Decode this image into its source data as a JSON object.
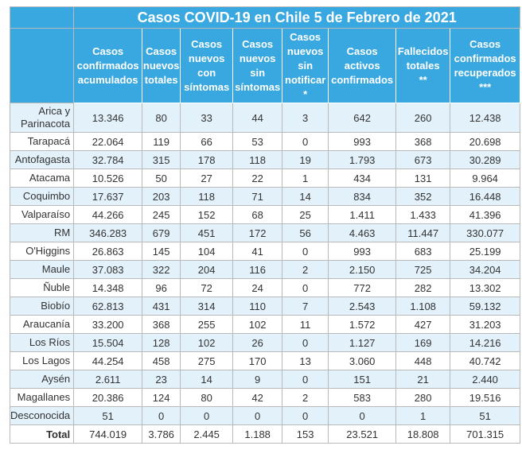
{
  "title": "Casos COVID-19 en Chile 5 de Febrero de 2021",
  "columns": [
    "Casos\nconfirmados\nacumulados",
    "Casos\nnuevos\ntotales",
    "Casos\nnuevos\ncon\nsíntomas",
    "Casos\nnuevos\nsin\nsíntomas",
    "Casos\nnuevos\nsin\nnotificar\n*",
    "Casos\nactivos\nconfirmados",
    "Fallecidos\ntotales\n**",
    "Casos\nconfirmados\nrecuperados\n***"
  ],
  "rows": [
    {
      "region": "Arica y Parinacota",
      "values": [
        "13.346",
        "80",
        "33",
        "44",
        "3",
        "642",
        "260",
        "12.438"
      ]
    },
    {
      "region": "Tarapacá",
      "values": [
        "22.064",
        "119",
        "66",
        "53",
        "0",
        "993",
        "368",
        "20.698"
      ]
    },
    {
      "region": "Antofagasta",
      "values": [
        "32.784",
        "315",
        "178",
        "118",
        "19",
        "1.793",
        "673",
        "30.289"
      ]
    },
    {
      "region": "Atacama",
      "values": [
        "10.526",
        "50",
        "27",
        "22",
        "1",
        "434",
        "131",
        "9.964"
      ]
    },
    {
      "region": "Coquimbo",
      "values": [
        "17.637",
        "203",
        "118",
        "71",
        "14",
        "834",
        "352",
        "16.448"
      ]
    },
    {
      "region": "Valparaíso",
      "values": [
        "44.266",
        "245",
        "152",
        "68",
        "25",
        "1.411",
        "1.433",
        "41.396"
      ]
    },
    {
      "region": "RM",
      "values": [
        "346.283",
        "679",
        "451",
        "172",
        "56",
        "4.463",
        "11.447",
        "330.077"
      ]
    },
    {
      "region": "O'Higgins",
      "values": [
        "26.863",
        "145",
        "104",
        "41",
        "0",
        "993",
        "683",
        "25.199"
      ]
    },
    {
      "region": "Maule",
      "values": [
        "37.083",
        "322",
        "204",
        "116",
        "2",
        "2.150",
        "725",
        "34.204"
      ]
    },
    {
      "region": "Ñuble",
      "values": [
        "14.348",
        "96",
        "72",
        "24",
        "0",
        "772",
        "282",
        "13.302"
      ]
    },
    {
      "region": "Biobío",
      "values": [
        "62.813",
        "431",
        "314",
        "110",
        "7",
        "2.543",
        "1.108",
        "59.132"
      ]
    },
    {
      "region": "Araucanía",
      "values": [
        "33.200",
        "368",
        "255",
        "102",
        "11",
        "1.572",
        "427",
        "31.203"
      ]
    },
    {
      "region": "Los Ríos",
      "values": [
        "15.504",
        "128",
        "102",
        "26",
        "0",
        "1.127",
        "169",
        "14.216"
      ]
    },
    {
      "region": "Los Lagos",
      "values": [
        "44.254",
        "458",
        "275",
        "170",
        "13",
        "3.060",
        "448",
        "40.742"
      ]
    },
    {
      "region": "Aysén",
      "values": [
        "2.611",
        "23",
        "14",
        "9",
        "0",
        "151",
        "21",
        "2.440"
      ]
    },
    {
      "region": "Magallanes",
      "values": [
        "20.386",
        "124",
        "80",
        "42",
        "2",
        "583",
        "280",
        "19.516"
      ]
    },
    {
      "region": "Desconocida",
      "values": [
        "51",
        "0",
        "0",
        "0",
        "0",
        "0",
        "1",
        "51"
      ]
    }
  ],
  "total": {
    "label": "Total",
    "values": [
      "744.019",
      "3.786",
      "2.445",
      "1.188",
      "153",
      "23.521",
      "18.808",
      "701.315"
    ]
  }
}
